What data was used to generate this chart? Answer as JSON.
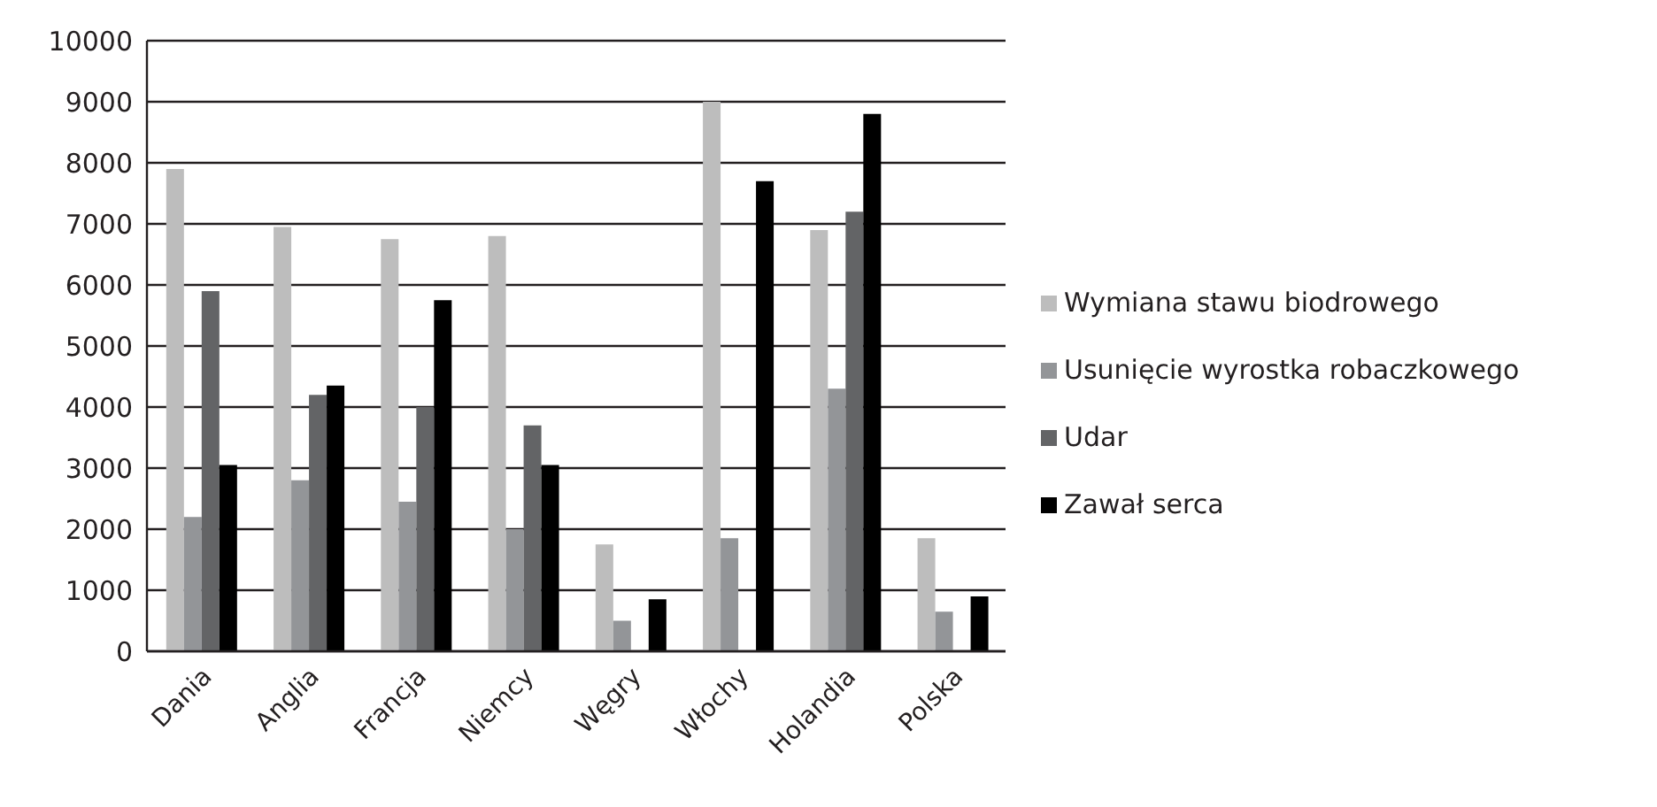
{
  "chart_data": {
    "type": "bar",
    "categories": [
      "Dania",
      "Anglia",
      "Francja",
      "Niemcy",
      "Węgry",
      "Włochy",
      "Holandia",
      "Polska"
    ],
    "series": [
      {
        "name": "Wymiana stawu biodrowego",
        "color": "#bdbdbd",
        "values": [
          7900,
          6950,
          6750,
          6800,
          1750,
          9000,
          6900,
          1850
        ]
      },
      {
        "name": "Usunięcie wyrostka robaczkowego",
        "color": "#939598",
        "values": [
          2200,
          2800,
          2450,
          2000,
          500,
          1850,
          4300,
          650
        ]
      },
      {
        "name": "Udar",
        "color": "#636466",
        "values": [
          5900,
          4200,
          4000,
          3700,
          null,
          null,
          7200,
          null
        ]
      },
      {
        "name": "Zawał serca",
        "color": "#000000",
        "values": [
          3050,
          4350,
          5750,
          3050,
          850,
          7700,
          8800,
          900
        ]
      }
    ],
    "ylim": [
      0,
      10000
    ],
    "yticks": [
      0,
      1000,
      2000,
      3000,
      4000,
      5000,
      6000,
      7000,
      8000,
      9000,
      10000
    ],
    "grid": "y",
    "legend": "right"
  }
}
